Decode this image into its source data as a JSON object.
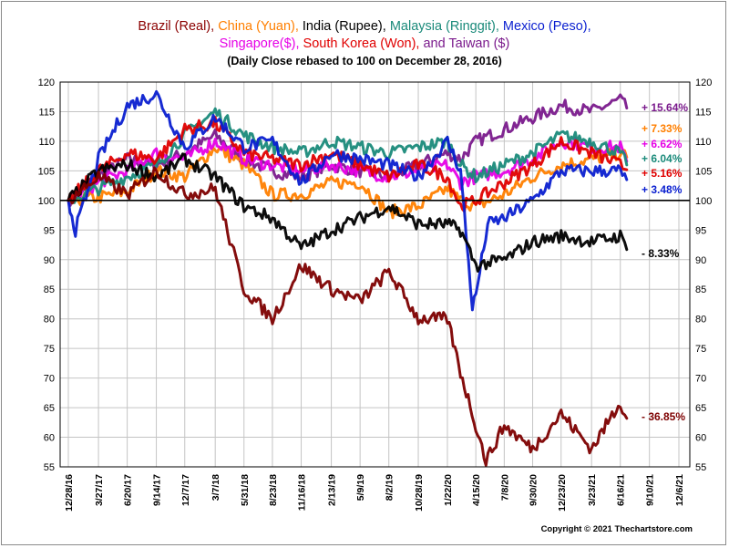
{
  "chart_data": {
    "type": "line",
    "title_parts": [
      {
        "text": "Brazil (Real), ",
        "color": "#8b0000"
      },
      {
        "text": "China (Yuan), ",
        "color": "#ff7f00"
      },
      {
        "text": "India (Rupee), ",
        "color": "#000000"
      },
      {
        "text": "Malaysia (Ringgit), ",
        "color": "#1a8a7a"
      },
      {
        "text": "Mexico (Peso),",
        "color": "#0a1fd0"
      }
    ],
    "title_parts_2": [
      {
        "text": "Singapore($), ",
        "color": "#e600e6"
      },
      {
        "text": "South Korea (Won), ",
        "color": "#e00000"
      },
      {
        "text": " and Taiwan ($)",
        "color": "#7a1a8c"
      }
    ],
    "subtitle": "(Daily Close rebased to 100 on December 28, 2016)",
    "copyright": "Copyright © 2021 Thechartstore.com",
    "x_ticks": [
      "12/28/16",
      "3/27/17",
      "6/20/17",
      "9/14/17",
      "12/7/17",
      "3/7/18",
      "5/31/18",
      "8/23/18",
      "11/16/18",
      "2/13/19",
      "5/9/19",
      "8/2/19",
      "10/28/19",
      "1/22/20",
      "4/15/20",
      "7/8/20",
      "9/30/20",
      "12/23/20",
      "3/23/21",
      "6/16/21",
      "9/10/21",
      "12/6/21"
    ],
    "y_ticks": [
      55,
      60,
      65,
      70,
      75,
      80,
      85,
      90,
      95,
      100,
      105,
      110,
      115,
      120
    ],
    "ylim": [
      55,
      120
    ],
    "x_domain": [
      "12/28/16",
      "12/6/21"
    ],
    "reference_line": 100,
    "series": [
      {
        "name": "Taiwan ($)",
        "color": "#7a1a8c",
        "end_label": "+ 15.64%",
        "x": [
          "12/28/16",
          "3/27/17",
          "6/20/17",
          "9/14/17",
          "12/7/17",
          "3/7/18",
          "5/31/18",
          "8/23/18",
          "11/16/18",
          "2/13/19",
          "5/9/19",
          "8/2/19",
          "10/28/19",
          "1/22/20",
          "3/1/20",
          "4/15/20",
          "7/8/20",
          "9/30/20",
          "12/23/20",
          "3/23/21",
          "6/16/21",
          "7/5/21"
        ],
        "values": [
          100,
          104,
          107,
          106,
          108,
          111,
          107,
          105,
          104,
          106,
          105,
          104,
          106,
          108,
          107,
          110,
          112,
          114,
          116,
          115,
          117,
          115.6
        ]
      },
      {
        "name": "China (Yuan)",
        "color": "#ff7f00",
        "end_label": "+ 7.33%",
        "x": [
          "12/28/16",
          "3/27/17",
          "6/20/17",
          "9/14/17",
          "12/7/17",
          "3/7/18",
          "5/31/18",
          "8/23/18",
          "11/16/18",
          "2/13/19",
          "5/9/19",
          "8/2/19",
          "10/28/19",
          "1/22/20",
          "3/1/20",
          "4/15/20",
          "7/8/20",
          "9/30/20",
          "12/23/20",
          "3/23/21",
          "6/16/21",
          "7/5/21"
        ],
        "values": [
          100,
          100.5,
          101.5,
          105,
          104,
          109,
          106,
          101,
          101,
          103,
          103,
          98,
          99,
          102,
          100,
          99,
          101,
          104,
          106,
          107,
          108,
          107.3
        ]
      },
      {
        "name": "Singapore($)",
        "color": "#e600e6",
        "end_label": "+ 6.62%",
        "x": [
          "12/28/16",
          "3/27/17",
          "6/20/17",
          "9/14/17",
          "12/7/17",
          "3/7/18",
          "5/31/18",
          "8/23/18",
          "11/16/18",
          "2/13/19",
          "5/9/19",
          "8/2/19",
          "10/28/19",
          "1/22/20",
          "3/1/20",
          "4/15/20",
          "7/8/20",
          "9/30/20",
          "12/23/20",
          "3/23/21",
          "6/16/21",
          "7/5/21"
        ],
        "values": [
          100,
          103,
          105,
          108,
          107,
          110,
          107,
          106,
          105,
          106,
          105,
          104,
          105,
          106,
          103,
          104,
          105,
          107,
          110,
          109,
          109,
          106.6
        ]
      },
      {
        "name": "Malaysia (Ringgit)",
        "color": "#1a8a7a",
        "end_label": "+ 6.04%",
        "x": [
          "12/28/16",
          "3/27/17",
          "6/20/17",
          "9/14/17",
          "12/7/17",
          "3/7/18",
          "5/31/18",
          "8/23/18",
          "11/16/18",
          "2/13/19",
          "5/9/19",
          "8/2/19",
          "10/28/19",
          "1/22/20",
          "3/1/20",
          "4/15/20",
          "7/8/20",
          "9/30/20",
          "12/23/20",
          "3/23/21",
          "6/16/21",
          "7/5/21"
        ],
        "values": [
          100,
          102,
          104,
          106,
          111,
          115,
          111,
          109,
          108,
          110,
          109,
          108,
          109,
          110,
          106,
          104,
          106,
          108,
          111,
          110,
          108,
          106.0
        ]
      },
      {
        "name": "South Korea (Won)",
        "color": "#e00000",
        "end_label": "+ 5.16%",
        "x": [
          "12/28/16",
          "3/27/17",
          "6/20/17",
          "9/14/17",
          "12/7/17",
          "3/7/18",
          "5/31/18",
          "8/23/18",
          "11/16/18",
          "2/13/19",
          "5/9/19",
          "8/2/19",
          "10/28/19",
          "1/22/20",
          "3/1/20",
          "4/15/20",
          "7/8/20",
          "9/30/20",
          "12/23/20",
          "3/23/21",
          "6/16/21",
          "7/5/21"
        ],
        "values": [
          100,
          105,
          108,
          107,
          112,
          113,
          108,
          107,
          106,
          108,
          106,
          104,
          106,
          104,
          99,
          100,
          103,
          106,
          110,
          108,
          106,
          105.2
        ]
      },
      {
        "name": "Mexico (Peso)",
        "color": "#0a1fd0",
        "end_label": "+ 3.48%",
        "x": [
          "12/28/16",
          "1/18/17",
          "3/27/17",
          "6/20/17",
          "9/14/17",
          "12/7/17",
          "3/7/18",
          "5/31/18",
          "8/23/18",
          "11/16/18",
          "2/13/19",
          "5/9/19",
          "8/2/19",
          "10/28/19",
          "1/22/20",
          "3/1/20",
          "4/5/20",
          "4/15/20",
          "5/20/20",
          "7/8/20",
          "9/30/20",
          "12/23/20",
          "3/23/21",
          "6/16/21",
          "7/5/21"
        ],
        "values": [
          100,
          95,
          107,
          116,
          118,
          109,
          114,
          109,
          110,
          103,
          108,
          107,
          106,
          104,
          110,
          105,
          82,
          84,
          96,
          97,
          100,
          105,
          105,
          105,
          103.5
        ]
      },
      {
        "name": "India (Rupee)",
        "color": "#000000",
        "end_label": "- 8.33%",
        "x": [
          "12/28/16",
          "3/27/17",
          "6/20/17",
          "9/14/17",
          "12/7/17",
          "3/7/18",
          "5/31/18",
          "8/23/18",
          "11/16/18",
          "2/13/19",
          "5/9/19",
          "8/2/19",
          "10/28/19",
          "1/22/20",
          "3/1/20",
          "4/15/20",
          "7/8/20",
          "9/30/20",
          "12/23/20",
          "3/23/21",
          "6/16/21",
          "7/5/21"
        ],
        "values": [
          100,
          105,
          106,
          104,
          107,
          104,
          99,
          97,
          92,
          95,
          97,
          99,
          96,
          96,
          95,
          89,
          90,
          93,
          94,
          93,
          94,
          91.7
        ]
      },
      {
        "name": "Brazil (Real)",
        "color": "#7d0000",
        "end_label": "- 36.85%",
        "x": [
          "12/28/16",
          "3/27/17",
          "6/20/17",
          "9/14/17",
          "12/7/17",
          "3/7/18",
          "5/31/18",
          "8/23/18",
          "11/16/18",
          "2/13/19",
          "5/9/19",
          "8/2/19",
          "10/28/19",
          "1/22/20",
          "3/1/20",
          "4/15/20",
          "5/15/20",
          "7/8/20",
          "9/30/20",
          "12/23/20",
          "3/23/21",
          "6/16/21",
          "7/5/21"
        ],
        "values": [
          100,
          104,
          101,
          105,
          101,
          102,
          85,
          80,
          89,
          85,
          83,
          88,
          80,
          80,
          71,
          62,
          56,
          62,
          58,
          64,
          58,
          66,
          63.2
        ]
      }
    ]
  }
}
